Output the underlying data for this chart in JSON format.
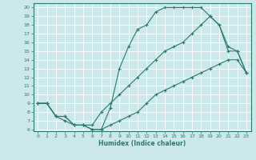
{
  "xlabel": "Humidex (Indice chaleur)",
  "xlim": [
    -0.5,
    23.5
  ],
  "ylim": [
    5.8,
    20.5
  ],
  "xticks": [
    0,
    1,
    2,
    3,
    4,
    5,
    6,
    7,
    8,
    9,
    10,
    11,
    12,
    13,
    14,
    15,
    16,
    17,
    18,
    19,
    20,
    21,
    22,
    23
  ],
  "yticks": [
    6,
    7,
    8,
    9,
    10,
    11,
    12,
    13,
    14,
    15,
    16,
    17,
    18,
    19,
    20
  ],
  "bg_color": "#cce8ea",
  "line_color": "#2a7a6f",
  "grid_color": "#ffffff",
  "curve1_x": [
    0,
    1,
    2,
    3,
    4,
    5,
    6,
    7,
    8,
    9,
    10,
    11,
    12,
    13,
    14,
    15,
    16,
    17,
    18,
    19,
    20,
    21,
    22,
    23
  ],
  "curve1_y": [
    9,
    9,
    7.5,
    7.5,
    6.5,
    6.5,
    6,
    6,
    8.5,
    13,
    15.5,
    17.5,
    18,
    19.5,
    20,
    20,
    20,
    20,
    20,
    19,
    18,
    15,
    15,
    12.5
  ],
  "curve2_x": [
    0,
    1,
    2,
    3,
    4,
    5,
    6,
    7,
    8,
    9,
    10,
    11,
    12,
    13,
    14,
    15,
    16,
    17,
    18,
    19,
    20,
    21,
    22,
    23
  ],
  "curve2_y": [
    9,
    9,
    7.5,
    7,
    6.5,
    6.5,
    6.5,
    8,
    9,
    10,
    11,
    12,
    13,
    14,
    15,
    15.5,
    16,
    17,
    18,
    19,
    18,
    15.5,
    15,
    12.5
  ],
  "curve3_x": [
    0,
    1,
    2,
    3,
    4,
    5,
    6,
    7,
    8,
    9,
    10,
    11,
    12,
    13,
    14,
    15,
    16,
    17,
    18,
    19,
    20,
    21,
    22,
    23
  ],
  "curve3_y": [
    9,
    9,
    7.5,
    7.5,
    6.5,
    6.5,
    6,
    6,
    6.5,
    7,
    7.5,
    8,
    9,
    10,
    10.5,
    11,
    11.5,
    12,
    12.5,
    13,
    13.5,
    14,
    14,
    12.5
  ]
}
